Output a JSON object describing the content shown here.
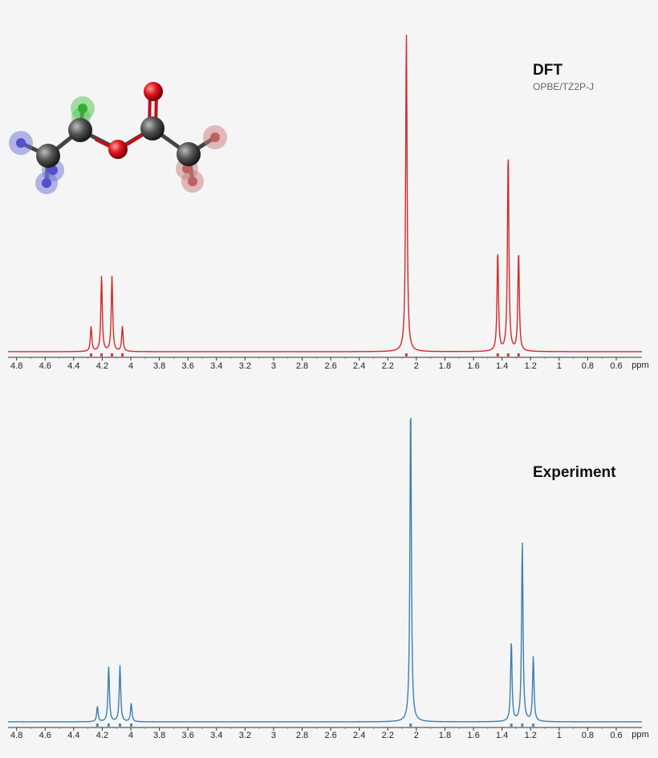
{
  "chart_data": [
    {
      "type": "line",
      "title": "DFT",
      "subtitle": "OPBE/TZ2P-J",
      "xlabel": "ppm",
      "xlim": [
        4.86,
        0.42
      ],
      "x_ticks": [
        4.8,
        4.6,
        4.4,
        4.2,
        4,
        3.8,
        3.6,
        3.4,
        3.2,
        3,
        2.8,
        2.6,
        2.4,
        2.2,
        2,
        1.8,
        1.6,
        1.4,
        1.2,
        1,
        0.8,
        0.6
      ],
      "line_color": "#d62728",
      "linewidth_hz": 0.006,
      "peaks": [
        {
          "ppm": 4.278,
          "height": 0.078
        },
        {
          "ppm": 4.205,
          "height": 0.236
        },
        {
          "ppm": 4.132,
          "height": 0.236
        },
        {
          "ppm": 4.059,
          "height": 0.078
        },
        {
          "ppm": 2.07,
          "height": 1.0
        },
        {
          "ppm": 1.43,
          "height": 0.312
        },
        {
          "ppm": 1.357,
          "height": 0.624
        },
        {
          "ppm": 1.284,
          "height": 0.312
        }
      ],
      "stick_markers": [
        4.278,
        4.205,
        4.132,
        4.059,
        2.07,
        1.43,
        1.357,
        1.284
      ]
    },
    {
      "type": "line",
      "title": "Experiment",
      "xlabel": "ppm",
      "xlim": [
        4.86,
        0.42
      ],
      "x_ticks": [
        4.8,
        4.6,
        4.4,
        4.2,
        4,
        3.8,
        3.6,
        3.4,
        3.2,
        3,
        2.8,
        2.6,
        2.4,
        2.2,
        2,
        1.8,
        1.6,
        1.4,
        1.2,
        1,
        0.8,
        0.6
      ],
      "line_color": "#3b7fb0",
      "linewidth_hz": 0.006,
      "peaks": [
        {
          "ppm": 4.234,
          "height": 0.048
        },
        {
          "ppm": 4.155,
          "height": 0.172
        },
        {
          "ppm": 4.076,
          "height": 0.176
        },
        {
          "ppm": 3.997,
          "height": 0.057
        },
        {
          "ppm": 2.04,
          "height": 1.0
        },
        {
          "ppm": 1.335,
          "height": 0.25
        },
        {
          "ppm": 1.258,
          "height": 0.563
        },
        {
          "ppm": 1.181,
          "height": 0.203
        }
      ],
      "stick_markers": [
        4.234,
        4.155,
        4.076,
        3.997,
        2.04,
        1.335,
        1.258,
        1.181
      ]
    }
  ],
  "molecule": {
    "name_icon": "ethyl-acetate-ball-and-stick",
    "colors": {
      "carbon": "#3a3a3a",
      "oxygen": "#e0141e",
      "h_methyl_ethyl": "#6f6fd6",
      "h_methylene": "#4fc44f",
      "h_acetyl": "#c97b7b"
    }
  }
}
